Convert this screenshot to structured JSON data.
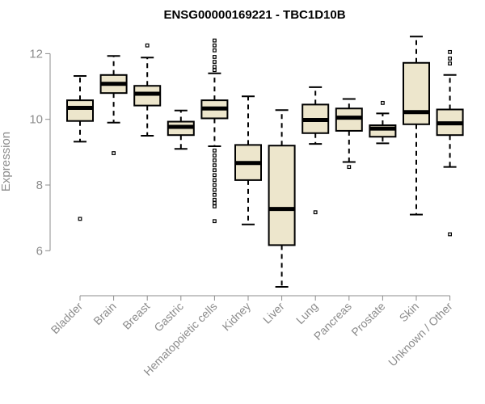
{
  "chart_data": {
    "type": "boxplot",
    "title": "ENSG00000169221 - TBC1D10B",
    "xlabel": "",
    "ylabel": "Expression",
    "ylim": [
      4.9,
      12.6
    ],
    "yticks": [
      6,
      8,
      10,
      12
    ],
    "box_color": "#ede6cc",
    "grid": false,
    "categories": [
      "Bladder",
      "Brain",
      "Breast",
      "Gastric",
      "Hematopoietic cells",
      "Kidney",
      "Liver",
      "Lung",
      "Pancreas",
      "Prostate",
      "Skin",
      "Unknown / Other"
    ],
    "boxes": [
      {
        "min": 9.32,
        "q1": 9.95,
        "median": 10.35,
        "q3": 10.58,
        "max": 11.32,
        "outliers": [
          6.97
        ]
      },
      {
        "min": 9.9,
        "q1": 10.8,
        "median": 11.08,
        "q3": 11.35,
        "max": 11.93,
        "outliers": [
          8.97
        ]
      },
      {
        "min": 9.5,
        "q1": 10.42,
        "median": 10.78,
        "q3": 11.02,
        "max": 11.88,
        "outliers": [
          12.25
        ]
      },
      {
        "min": 9.1,
        "q1": 9.52,
        "median": 9.77,
        "q3": 9.93,
        "max": 10.27,
        "outliers": []
      },
      {
        "min": 9.18,
        "q1": 10.03,
        "median": 10.33,
        "q3": 10.58,
        "max": 11.4,
        "outliers": [
          12.4,
          12.25,
          12.1,
          11.9,
          11.75,
          11.6,
          11.5,
          9.05,
          8.9,
          8.75,
          8.6,
          8.45,
          8.3,
          8.15,
          8.0,
          7.85,
          7.7,
          7.55,
          7.45,
          7.35,
          6.9
        ]
      },
      {
        "min": 6.8,
        "q1": 8.15,
        "median": 8.67,
        "q3": 9.22,
        "max": 10.7,
        "outliers": []
      },
      {
        "min": 4.9,
        "q1": 6.17,
        "median": 7.27,
        "q3": 9.2,
        "max": 10.28,
        "outliers": []
      },
      {
        "min": 9.25,
        "q1": 9.58,
        "median": 9.98,
        "q3": 10.45,
        "max": 10.98,
        "outliers": [
          7.17
        ]
      },
      {
        "min": 8.7,
        "q1": 9.65,
        "median": 10.05,
        "q3": 10.33,
        "max": 10.62,
        "outliers": [
          8.55
        ]
      },
      {
        "min": 9.27,
        "q1": 9.47,
        "median": 9.72,
        "q3": 9.82,
        "max": 10.18,
        "outliers": [
          10.5
        ]
      },
      {
        "min": 7.1,
        "q1": 9.85,
        "median": 10.22,
        "q3": 11.72,
        "max": 12.52,
        "outliers": []
      },
      {
        "min": 8.55,
        "q1": 9.52,
        "median": 9.88,
        "q3": 10.3,
        "max": 11.35,
        "outliers": [
          12.05,
          11.85,
          11.7,
          6.5
        ]
      }
    ]
  }
}
